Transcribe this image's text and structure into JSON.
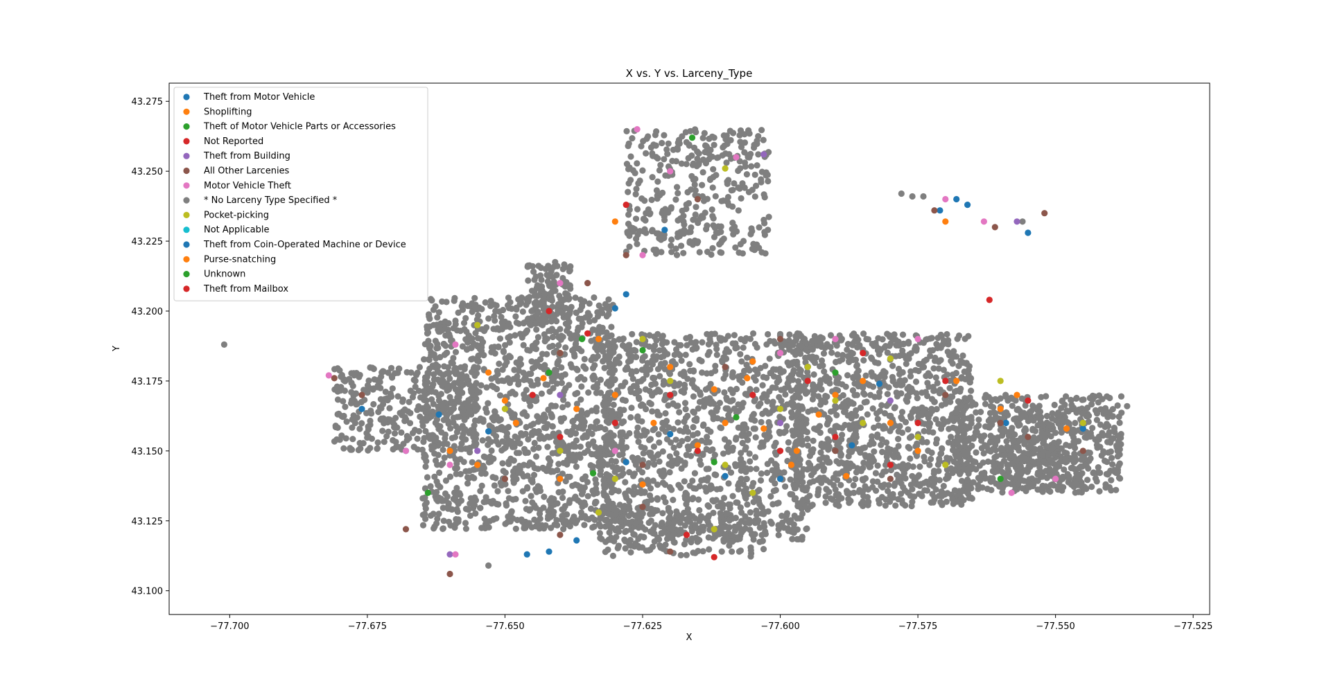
{
  "chart_data": {
    "type": "scatter",
    "title": "X vs. Y vs. Larceny_Type",
    "xlabel": "X",
    "ylabel": "Y",
    "xlim": [
      -77.711,
      -77.522
    ],
    "ylim": [
      43.0915,
      43.2815
    ],
    "xticks": [
      -77.7,
      -77.675,
      -77.65,
      -77.625,
      -77.6,
      -77.575,
      -77.55,
      -77.525
    ],
    "xtick_labels": [
      "−77.700",
      "−77.675",
      "−77.650",
      "−77.625",
      "−77.600",
      "−77.575",
      "−77.550",
      "−77.525"
    ],
    "yticks": [
      43.1,
      43.125,
      43.15,
      43.175,
      43.2,
      43.225,
      43.25,
      43.275
    ],
    "ytick_labels": [
      "43.100",
      "43.125",
      "43.150",
      "43.175",
      "43.200",
      "43.225",
      "43.250",
      "43.275"
    ],
    "grid": false,
    "legend_position": "upper-left",
    "series": [
      {
        "name": "Theft from Motor Vehicle",
        "color": "#1f77b4",
        "points": [
          [
            -77.568,
            43.24
          ],
          [
            -77.571,
            43.236
          ],
          [
            -77.566,
            43.238
          ],
          [
            -77.555,
            43.228
          ],
          [
            -77.646,
            43.113
          ],
          [
            -77.628,
            43.206
          ],
          [
            -77.63,
            43.201
          ],
          [
            -77.676,
            43.165
          ],
          [
            -77.668,
            43.15
          ],
          [
            -77.642,
            43.114
          ],
          [
            -77.621,
            43.229
          ],
          [
            -77.587,
            43.152
          ],
          [
            -77.545,
            43.158
          ],
          [
            -77.61,
            43.141
          ],
          [
            -77.662,
            43.163
          ],
          [
            -77.628,
            43.146
          ],
          [
            -77.559,
            43.16
          ],
          [
            -77.62,
            43.156
          ],
          [
            -77.6,
            43.14
          ],
          [
            -77.582,
            43.174
          ],
          [
            -77.637,
            43.118
          ],
          [
            -77.653,
            43.157
          ]
        ]
      },
      {
        "name": "Shoplifting",
        "color": "#ff7f0e",
        "points": [
          [
            -77.57,
            43.232
          ],
          [
            -77.64,
            43.185
          ],
          [
            -77.648,
            43.16
          ],
          [
            -77.63,
            43.17
          ],
          [
            -77.61,
            43.16
          ],
          [
            -77.603,
            43.158
          ],
          [
            -77.597,
            43.15
          ],
          [
            -77.62,
            43.18
          ],
          [
            -77.66,
            43.15
          ],
          [
            -77.655,
            43.145
          ],
          [
            -77.64,
            43.14
          ],
          [
            -77.585,
            43.175
          ],
          [
            -77.575,
            43.15
          ],
          [
            -77.56,
            43.165
          ],
          [
            -77.59,
            43.17
          ],
          [
            -77.612,
            43.172
          ],
          [
            -77.606,
            43.176
          ],
          [
            -77.633,
            43.19
          ],
          [
            -77.65,
            43.168
          ],
          [
            -77.643,
            43.176
          ],
          [
            -77.623,
            43.16
          ],
          [
            -77.598,
            43.145
          ],
          [
            -77.593,
            43.163
          ],
          [
            -77.58,
            43.16
          ],
          [
            -77.568,
            43.175
          ],
          [
            -77.548,
            43.158
          ],
          [
            -77.625,
            43.138
          ],
          [
            -77.615,
            43.152
          ],
          [
            -77.637,
            43.165
          ],
          [
            -77.653,
            43.178
          ],
          [
            -77.605,
            43.182
          ],
          [
            -77.588,
            43.141
          ],
          [
            -77.63,
            43.232
          ],
          [
            -77.557,
            43.17
          ]
        ]
      },
      {
        "name": "Theft of Motor Vehicle Parts or Accessories",
        "color": "#2ca02c",
        "points": [
          [
            -77.636,
            43.19
          ],
          [
            -77.642,
            43.178
          ],
          [
            -77.625,
            43.186
          ],
          [
            -77.612,
            43.146
          ],
          [
            -77.664,
            43.135
          ],
          [
            -77.634,
            43.142
          ],
          [
            -77.56,
            43.14
          ],
          [
            -77.59,
            43.178
          ],
          [
            -77.616,
            43.262
          ],
          [
            -77.608,
            43.162
          ]
        ]
      },
      {
        "name": "Not Reported",
        "color": "#d62728",
        "points": [
          [
            -77.562,
            43.204
          ],
          [
            -77.617,
            43.12
          ],
          [
            -77.612,
            43.112
          ],
          [
            -77.642,
            43.2
          ],
          [
            -77.635,
            43.192
          ],
          [
            -77.62,
            43.17
          ],
          [
            -77.6,
            43.15
          ],
          [
            -77.585,
            43.185
          ],
          [
            -77.575,
            43.16
          ],
          [
            -77.595,
            43.175
          ],
          [
            -77.615,
            43.15
          ],
          [
            -77.63,
            43.16
          ],
          [
            -77.645,
            43.17
          ],
          [
            -77.57,
            43.175
          ],
          [
            -77.59,
            43.155
          ],
          [
            -77.555,
            43.168
          ],
          [
            -77.628,
            43.238
          ],
          [
            -77.64,
            43.155
          ],
          [
            -77.605,
            43.17
          ],
          [
            -77.58,
            43.145
          ]
        ]
      },
      {
        "name": "Theft from Building",
        "color": "#9467bd",
        "points": [
          [
            -77.603,
            43.256
          ],
          [
            -77.557,
            43.232
          ],
          [
            -77.66,
            43.113
          ],
          [
            -77.64,
            43.17
          ],
          [
            -77.6,
            43.16
          ],
          [
            -77.62,
            43.175
          ],
          [
            -77.58,
            43.168
          ],
          [
            -77.655,
            43.15
          ]
        ]
      },
      {
        "name": "All Other Larcenies",
        "color": "#8c564b",
        "points": [
          [
            -77.552,
            43.235
          ],
          [
            -77.572,
            43.236
          ],
          [
            -77.561,
            43.23
          ],
          [
            -77.66,
            43.106
          ],
          [
            -77.668,
            43.122
          ],
          [
            -77.62,
            43.114
          ],
          [
            -77.681,
            43.176
          ],
          [
            -77.64,
            43.12
          ],
          [
            -77.628,
            43.22
          ],
          [
            -77.625,
            43.13
          ],
          [
            -77.676,
            43.17
          ],
          [
            -77.65,
            43.14
          ],
          [
            -77.61,
            43.18
          ],
          [
            -77.59,
            43.15
          ],
          [
            -77.57,
            43.17
          ],
          [
            -77.555,
            43.155
          ],
          [
            -77.635,
            43.21
          ],
          [
            -77.6,
            43.19
          ],
          [
            -77.58,
            43.14
          ],
          [
            -77.615,
            43.24
          ],
          [
            -77.56,
            43.16
          ],
          [
            -77.64,
            43.185
          ],
          [
            -77.625,
            43.145
          ],
          [
            -77.545,
            43.15
          ]
        ]
      },
      {
        "name": "Motor Vehicle Theft",
        "color": "#e377c2",
        "points": [
          [
            -77.563,
            43.232
          ],
          [
            -77.626,
            43.265
          ],
          [
            -77.659,
            43.113
          ],
          [
            -77.668,
            43.15
          ],
          [
            -77.682,
            43.177
          ],
          [
            -77.659,
            43.188
          ],
          [
            -77.625,
            43.22
          ],
          [
            -77.57,
            43.24
          ],
          [
            -77.55,
            43.14
          ],
          [
            -77.59,
            43.19
          ],
          [
            -77.63,
            43.15
          ],
          [
            -77.608,
            43.255
          ],
          [
            -77.6,
            43.185
          ],
          [
            -77.66,
            43.145
          ],
          [
            -77.575,
            43.19
          ],
          [
            -77.558,
            43.135
          ],
          [
            -77.64,
            43.21
          ],
          [
            -77.62,
            43.25
          ]
        ]
      },
      {
        "name": "* No Larceny Type Specified *",
        "color": "#7f7f7f",
        "clusters": [
          {
            "x": [
              -77.665,
              -77.63
            ],
            "y": [
              43.122,
              43.205
            ],
            "n": 1300
          },
          {
            "x": [
              -77.632,
              -77.595
            ],
            "y": [
              43.118,
              43.192
            ],
            "n": 1100
          },
          {
            "x": [
              -77.598,
              -77.565
            ],
            "y": [
              43.13,
              43.192
            ],
            "n": 1000
          },
          {
            "x": [
              -77.568,
              -77.538
            ],
            "y": [
              43.135,
              43.17
            ],
            "n": 600
          },
          {
            "x": [
              -77.681,
              -77.655
            ],
            "y": [
              43.15,
              43.18
            ],
            "n": 300
          },
          {
            "x": [
              -77.628,
              -77.602
            ],
            "y": [
              43.22,
              43.265
            ],
            "n": 350
          },
          {
            "x": [
              -77.646,
              -77.638
            ],
            "y": [
              43.196,
              43.218
            ],
            "n": 120
          },
          {
            "x": [
              -77.633,
              -77.603
            ],
            "y": [
              43.112,
              43.13
            ],
            "n": 200
          },
          {
            "x": [
              -77.56,
              -77.545
            ],
            "y": [
              43.137,
              43.162
            ],
            "n": 150
          }
        ],
        "points": [
          [
            -77.701,
            43.188
          ],
          [
            -77.578,
            43.242
          ],
          [
            -77.576,
            43.241
          ],
          [
            -77.574,
            43.241
          ],
          [
            -77.653,
            43.109
          ],
          [
            -77.537,
            43.166
          ],
          [
            -77.556,
            43.232
          ],
          [
            -77.622,
            43.226
          ],
          [
            -77.604,
            43.256
          ],
          [
            -77.612,
            43.262
          ]
        ]
      },
      {
        "name": "Pocket-picking",
        "color": "#bcbd22",
        "points": [
          [
            -77.612,
            43.122
          ],
          [
            -77.61,
            43.251
          ],
          [
            -77.62,
            43.175
          ],
          [
            -77.6,
            43.165
          ],
          [
            -77.585,
            43.16
          ],
          [
            -77.64,
            43.15
          ],
          [
            -77.63,
            43.14
          ],
          [
            -77.57,
            43.145
          ],
          [
            -77.595,
            43.18
          ],
          [
            -77.65,
            43.165
          ],
          [
            -77.56,
            43.175
          ],
          [
            -77.61,
            43.145
          ],
          [
            -77.575,
            43.155
          ],
          [
            -77.545,
            43.16
          ],
          [
            -77.625,
            43.19
          ],
          [
            -77.655,
            43.195
          ],
          [
            -77.605,
            43.135
          ],
          [
            -77.59,
            43.168
          ],
          [
            -77.633,
            43.128
          ],
          [
            -77.58,
            43.183
          ]
        ]
      },
      {
        "name": "Not Applicable",
        "color": "#17becf",
        "points": []
      },
      {
        "name": "Theft from Coin-Operated Machine or Device",
        "color": "#1f77b4",
        "points": []
      },
      {
        "name": "Purse-snatching",
        "color": "#ff7f0e",
        "points": []
      },
      {
        "name": "Unknown",
        "color": "#2ca02c",
        "points": []
      },
      {
        "name": "Theft from Mailbox",
        "color": "#d62728",
        "points": []
      }
    ]
  }
}
